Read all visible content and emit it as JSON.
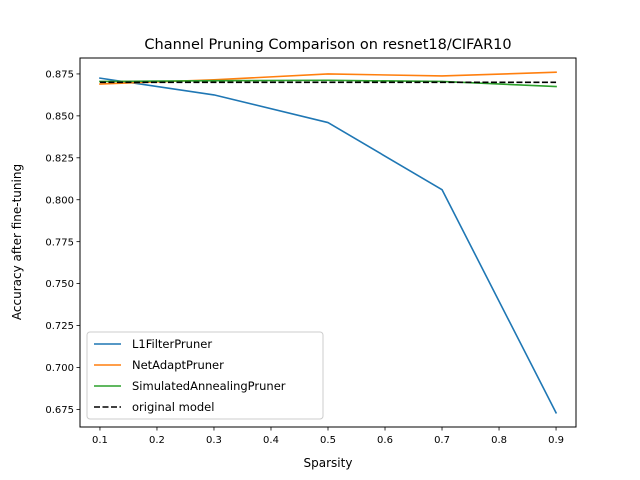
{
  "chart_data": {
    "type": "line",
    "title": "Channel Pruning Comparison on resnet18/CIFAR10",
    "xlabel": "Sparsity",
    "ylabel": "Accuracy after fine-tuning",
    "xlim": [
      0.065,
      0.935
    ],
    "ylim": [
      0.6645,
      0.8845
    ],
    "xticks": [
      0.1,
      0.2,
      0.3,
      0.4,
      0.5,
      0.6,
      0.7,
      0.8,
      0.9
    ],
    "xtick_labels": [
      "0.1",
      "0.2",
      "0.3",
      "0.4",
      "0.5",
      "0.6",
      "0.7",
      "0.8",
      "0.9"
    ],
    "yticks": [
      0.675,
      0.7,
      0.725,
      0.75,
      0.775,
      0.8,
      0.825,
      0.85,
      0.875
    ],
    "ytick_labels": [
      "0.675",
      "0.700",
      "0.725",
      "0.750",
      "0.775",
      "0.800",
      "0.825",
      "0.850",
      "0.875"
    ],
    "grid": false,
    "legend_position": "lower-left",
    "x": [
      0.1,
      0.3,
      0.5,
      0.7,
      0.9
    ],
    "series": [
      {
        "name": "L1FilterPruner",
        "color": "#1f77b4",
        "style": "solid",
        "values": [
          0.8725,
          0.8625,
          0.846,
          0.806,
          0.673
        ]
      },
      {
        "name": "NetAdaptPruner",
        "color": "#ff7f0e",
        "style": "solid",
        "values": [
          0.869,
          0.8715,
          0.875,
          0.8738,
          0.876
        ]
      },
      {
        "name": "SimulatedAnnealingPruner",
        "color": "#2ca02c",
        "style": "solid",
        "values": [
          0.8705,
          0.871,
          0.8712,
          0.8705,
          0.8675
        ]
      },
      {
        "name": "original model",
        "color": "#000000",
        "style": "dashed",
        "values": [
          0.87,
          0.87,
          0.87,
          0.87,
          0.87
        ]
      }
    ]
  }
}
